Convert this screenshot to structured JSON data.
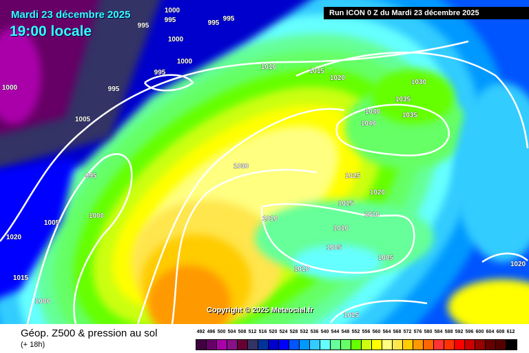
{
  "header": {
    "date": "Mardi 23 décembre 2025",
    "time": "19:00 locale",
    "run": "Run ICON 0 Z du Mardi 23 décembre 2025"
  },
  "copyright": "Copyright © 2025 Meteociel.fr",
  "footer": {
    "title": "Géop. Z500 & pression au sol",
    "subtitle": "(+ 18h)"
  },
  "legend": {
    "values": [
      "492",
      "496",
      "500",
      "504",
      "508",
      "512",
      "516",
      "520",
      "524",
      "528",
      "532",
      "536",
      "540",
      "544",
      "548",
      "552",
      "556",
      "560",
      "564",
      "568",
      "572",
      "576",
      "580",
      "584",
      "588",
      "592",
      "596",
      "600",
      "604",
      "608",
      "612"
    ],
    "colors": [
      "#400040",
      "#660066",
      "#aa00aa",
      "#881188",
      "#660033",
      "#333366",
      "#003399",
      "#0000cc",
      "#0000ff",
      "#0055ff",
      "#0099ff",
      "#33ccff",
      "#66ffff",
      "#66ff99",
      "#66ff66",
      "#66ff00",
      "#ccff11",
      "#ffff00",
      "#ffff80",
      "#ffe64d",
      "#ffcc00",
      "#ff9900",
      "#ff6600",
      "#ff3333",
      "#ff3300",
      "#ff0000",
      "#cc0000",
      "#990000",
      "#660000",
      "#550000",
      "#000000"
    ]
  },
  "isobar_labels": [
    "1000",
    "995",
    "995",
    "995",
    "1000",
    "995",
    "1000",
    "995",
    "995",
    "1000",
    "1005",
    "1010",
    "1015",
    "1020",
    "1030",
    "1035",
    "1035",
    "1040",
    "1040",
    "1030",
    "995",
    "1000",
    "1005",
    "1015",
    "1020",
    "1025",
    "1020",
    "1015",
    "1010",
    "1010",
    "1010",
    "1005",
    "1005",
    "1010",
    "1015",
    "1020",
    "1000"
  ]
}
